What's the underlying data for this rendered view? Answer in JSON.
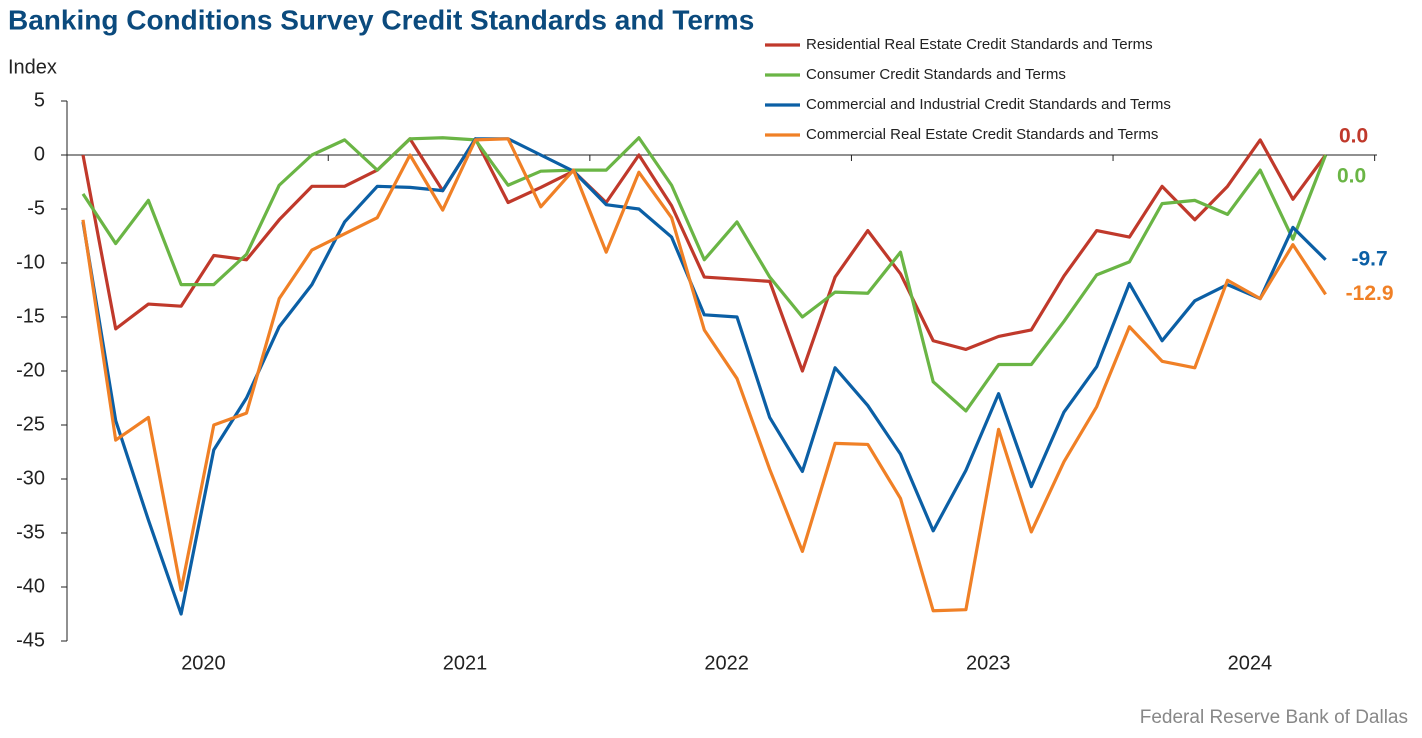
{
  "chart_data": {
    "type": "line",
    "title": "Banking Conditions Survey Credit Standards and Terms",
    "y_label": "Index",
    "source": "Federal Reserve Bank of Dallas",
    "x_labels": [
      "2020",
      "2021",
      "2022",
      "2023",
      "2024"
    ],
    "ylim": [
      -45,
      5
    ],
    "yticks": [
      -45,
      -40,
      -35,
      -30,
      -25,
      -20,
      -15,
      -10,
      -5,
      0,
      5
    ],
    "series": [
      {
        "name": "Residential Real Estate Credit Standards and Terms",
        "color": "#c0392b",
        "values": [
          0,
          -16.1,
          -13.8,
          -14.0,
          -9.3,
          -9.7,
          -6.0,
          -2.9,
          -2.9,
          -1.4,
          1.5,
          -3.3,
          1.5,
          -4.4,
          -3.0,
          -1.5,
          -4.4,
          0,
          -4.7,
          -11.3,
          -11.5,
          -11.7,
          -20.0,
          -11.3,
          -7.0,
          -11.0,
          -17.2,
          -18.0,
          -16.8,
          -16.2,
          -11.2,
          -7.0,
          -7.6,
          -2.9,
          -6.0,
          -2.9,
          1.4,
          -4.1,
          0.0
        ],
        "value_labels": [
          null,
          null,
          null,
          null,
          null,
          null,
          null,
          null,
          null,
          null,
          null,
          null,
          null,
          null,
          null,
          null,
          null,
          null,
          null,
          null,
          null,
          null,
          null,
          null,
          null,
          null,
          null,
          null,
          null,
          null,
          null,
          null,
          null,
          null,
          null,
          null,
          null,
          null,
          "0.0"
        ]
      },
      {
        "name": "Consumer Credit Standards and Terms",
        "color": "#6ab545",
        "values": [
          -3.6,
          -8.2,
          -4.2,
          -12.0,
          -12.0,
          -9.2,
          -2.8,
          0,
          1.4,
          -1.4,
          1.5,
          1.6,
          1.4,
          -2.8,
          -1.5,
          -1.4,
          -1.4,
          1.6,
          -2.8,
          -9.7,
          -6.2,
          -11.3,
          -15.0,
          -12.7,
          -12.8,
          -9.0,
          -21.0,
          -23.7,
          -19.4,
          -19.4,
          -15.4,
          -11.1,
          -9.9,
          -4.5,
          -4.2,
          -5.5,
          -1.4,
          -7.8,
          0.0
        ],
        "value_labels": [
          null,
          null,
          null,
          null,
          null,
          null,
          null,
          null,
          null,
          null,
          null,
          null,
          null,
          null,
          null,
          null,
          null,
          null,
          null,
          null,
          null,
          null,
          null,
          null,
          null,
          null,
          null,
          null,
          null,
          null,
          null,
          null,
          null,
          null,
          null,
          null,
          null,
          null,
          "0.0"
        ]
      },
      {
        "name": "Commercial and Industrial Credit Standards and Terms",
        "color": "#0b5fa5",
        "values": [
          -6.2,
          -24.6,
          -33.8,
          -42.5,
          -27.3,
          -22.5,
          -15.9,
          -12.0,
          -6.2,
          -2.9,
          -3.0,
          -3.3,
          1.5,
          1.5,
          0,
          -1.5,
          -4.6,
          -5.0,
          -7.6,
          -14.8,
          -15.0,
          -24.3,
          -29.3,
          -19.7,
          -23.2,
          -27.7,
          -34.8,
          -29.2,
          -22.1,
          -30.7,
          -23.8,
          -19.6,
          -11.9,
          -17.2,
          -13.5,
          -12.0,
          -13.3,
          -6.7,
          -9.7
        ],
        "value_labels": [
          null,
          null,
          null,
          null,
          null,
          null,
          null,
          null,
          null,
          null,
          null,
          null,
          null,
          null,
          null,
          null,
          null,
          null,
          null,
          null,
          null,
          null,
          null,
          null,
          null,
          null,
          null,
          null,
          null,
          null,
          null,
          null,
          null,
          null,
          null,
          null,
          null,
          null,
          "-9.7"
        ]
      },
      {
        "name": "Commercial Real Estate Credit Standards and Terms",
        "color": "#f08026",
        "values": [
          -6.0,
          -26.4,
          -24.3,
          -40.3,
          -25.0,
          -23.9,
          -13.3,
          -8.8,
          -7.3,
          -5.8,
          0,
          -5.1,
          1.4,
          1.5,
          -4.8,
          -1.4,
          -9.0,
          -1.6,
          -5.8,
          -16.2,
          -20.7,
          -29.1,
          -36.7,
          -26.7,
          -26.8,
          -31.8,
          -42.2,
          -42.1,
          -25.4,
          -34.9,
          -28.4,
          -23.3,
          -15.9,
          -19.1,
          -19.7,
          -11.6,
          -13.3,
          -8.3,
          -12.9
        ],
        "value_labels": [
          null,
          null,
          null,
          null,
          null,
          null,
          null,
          null,
          null,
          null,
          null,
          null,
          null,
          null,
          null,
          null,
          null,
          null,
          null,
          null,
          null,
          null,
          null,
          null,
          null,
          null,
          null,
          null,
          null,
          null,
          null,
          null,
          null,
          null,
          null,
          null,
          null,
          null,
          "-12.9"
        ]
      }
    ]
  }
}
